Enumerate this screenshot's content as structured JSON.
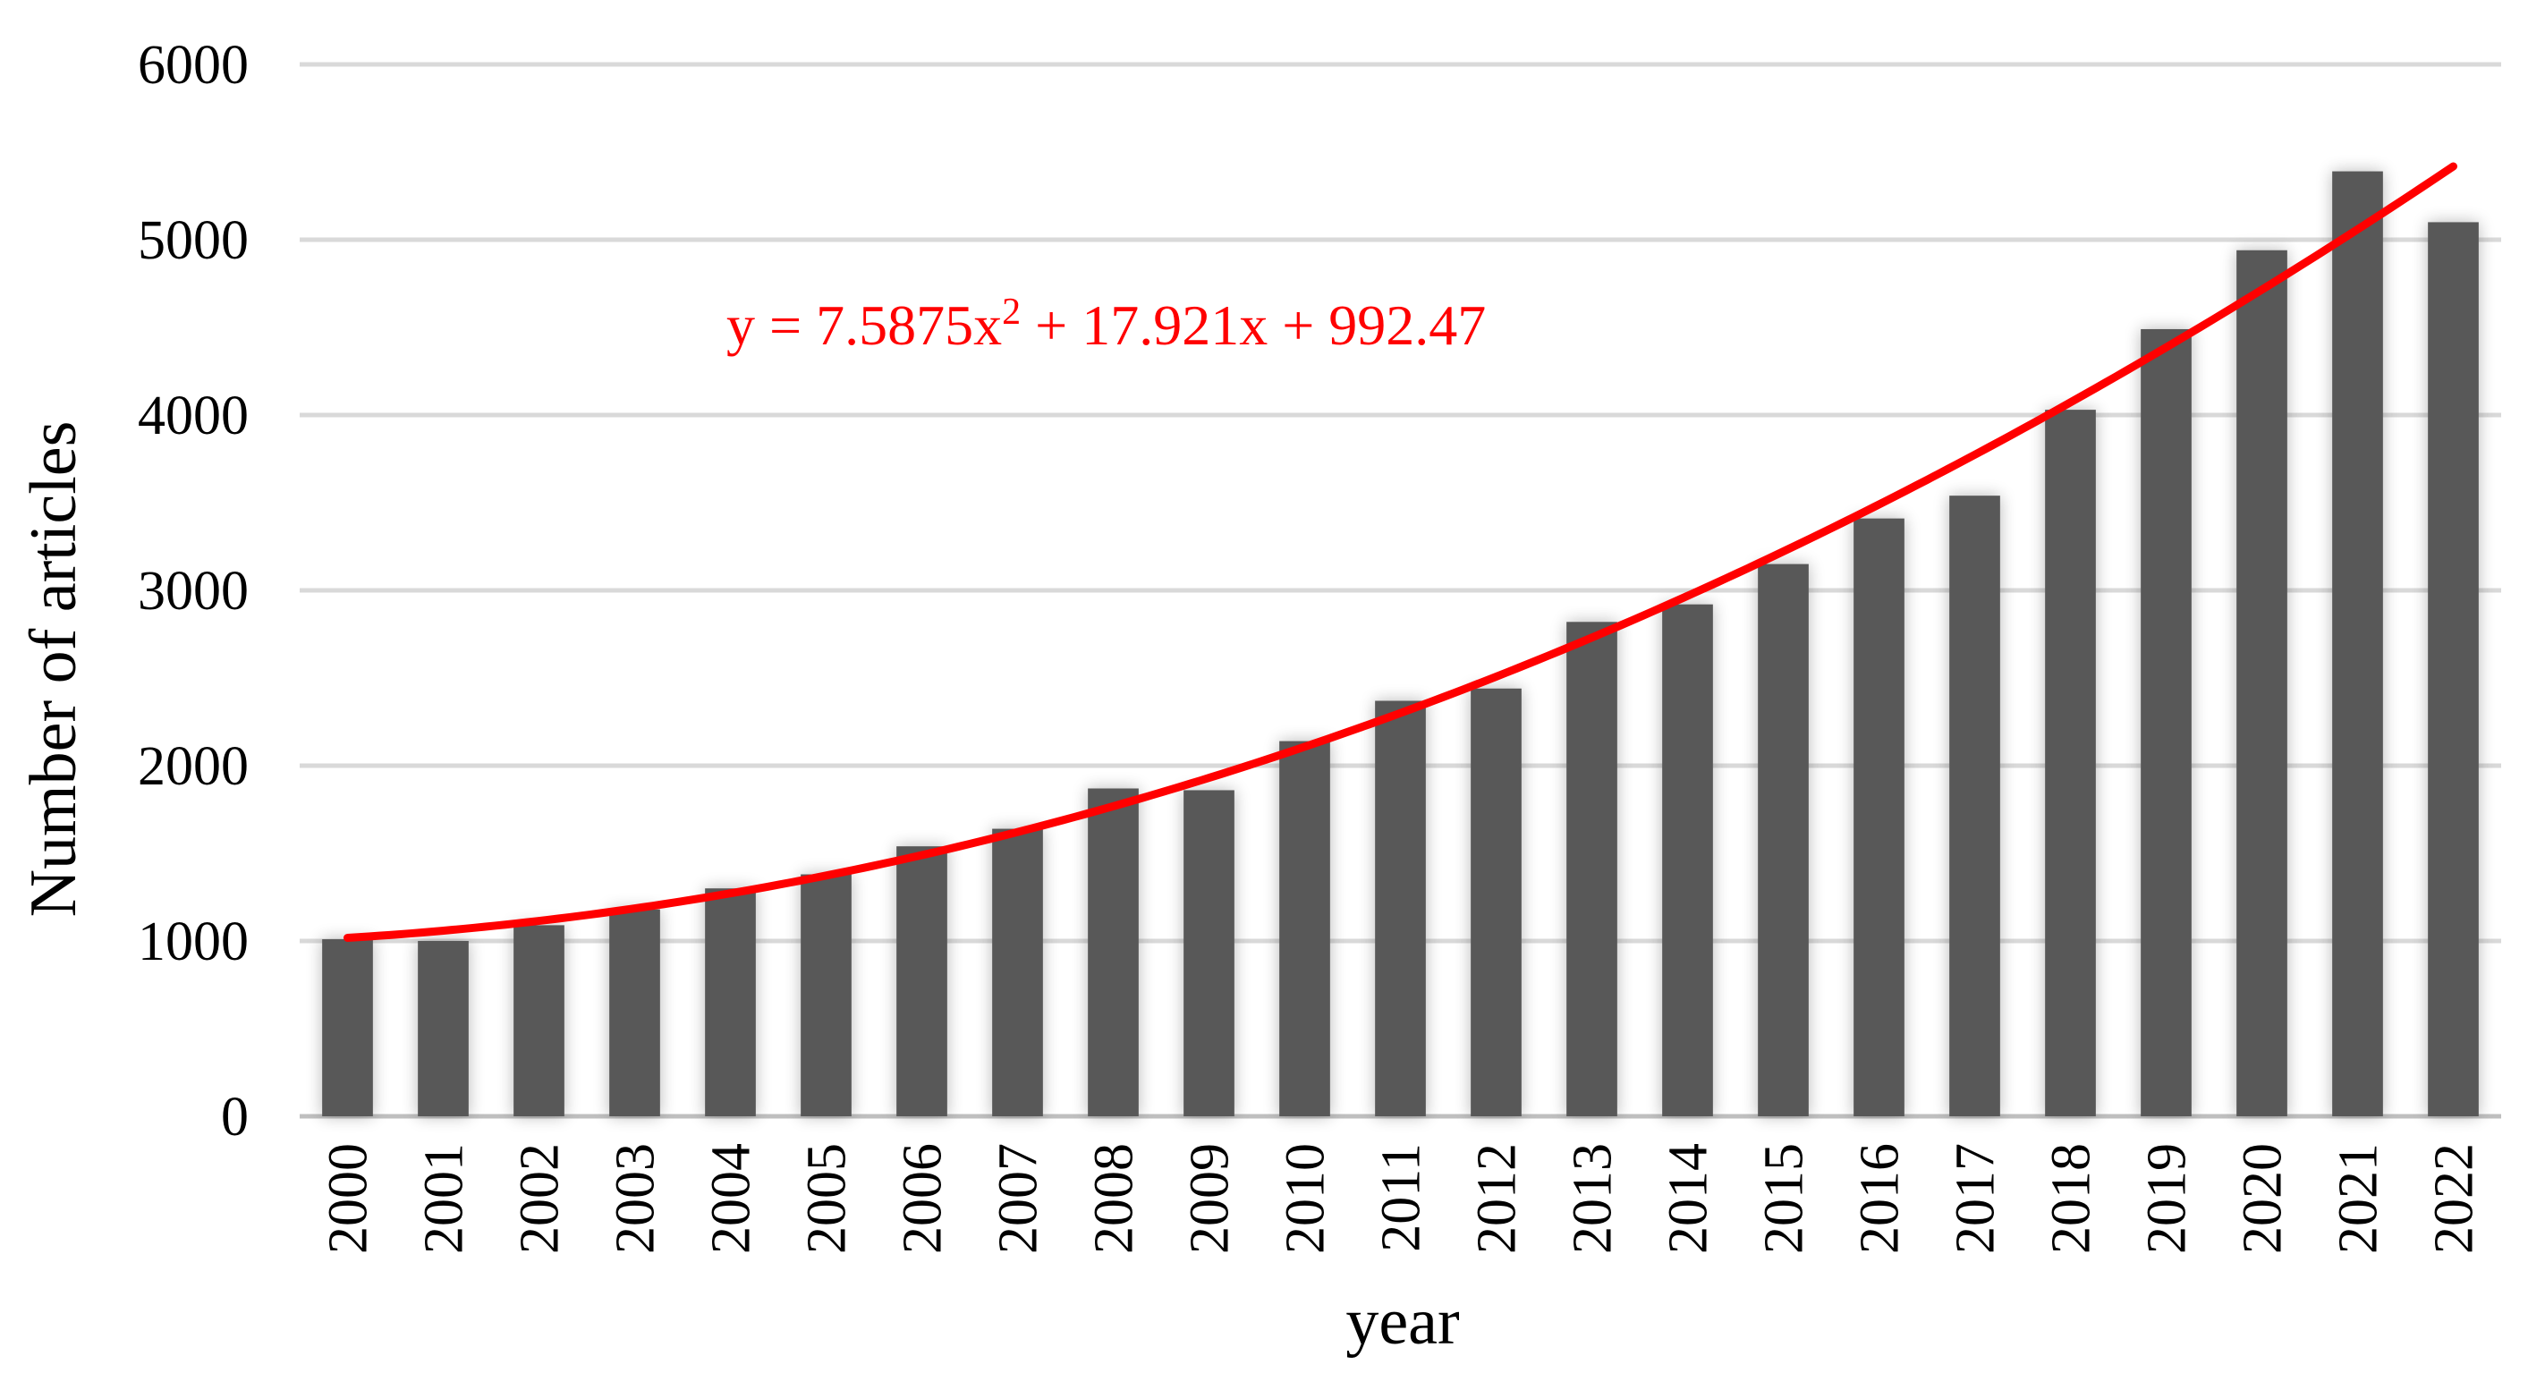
{
  "chart_data": {
    "type": "bar",
    "xlabel": "year",
    "ylabel": "Number of articles",
    "ylim": [
      0,
      6000
    ],
    "yticks": [
      0,
      1000,
      2000,
      3000,
      4000,
      5000,
      6000
    ],
    "grid": true,
    "categories": [
      "2000",
      "2001",
      "2002",
      "2003",
      "2004",
      "2005",
      "2006",
      "2007",
      "2008",
      "2009",
      "2010",
      "2011",
      "2012",
      "2013",
      "2014",
      "2015",
      "2016",
      "2017",
      "2018",
      "2019",
      "2020",
      "2021",
      "2022"
    ],
    "values": [
      1010,
      1000,
      1090,
      1180,
      1300,
      1380,
      1540,
      1640,
      1870,
      1860,
      2140,
      2370,
      2440,
      2820,
      2920,
      3150,
      3410,
      3540,
      4030,
      4490,
      4940,
      5390,
      5100
    ],
    "bar_color": "#595959",
    "trendline": {
      "type": "polynomial",
      "order": 2,
      "equation": "y = 7.5875x² + 17.921x + 992.47",
      "coefficients": [
        7.5875,
        17.921,
        992.47
      ],
      "color": "#ff0000"
    }
  }
}
